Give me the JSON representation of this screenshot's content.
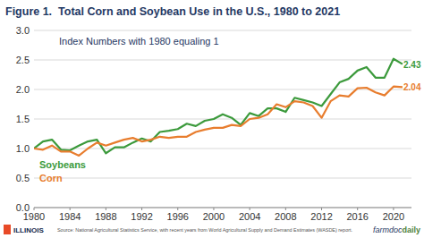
{
  "chart_data": {
    "type": "line",
    "title": "Figure 1.  Total Corn and Soybean Use in the U.S., 1980 to 2021",
    "annotations": [
      "Index Numbers with 1980 equaling 1",
      "Soybeans",
      "Corn",
      "2.43",
      "2.04"
    ],
    "x": [
      1980,
      1981,
      1982,
      1983,
      1984,
      1985,
      1986,
      1987,
      1988,
      1989,
      1990,
      1991,
      1992,
      1993,
      1994,
      1995,
      1996,
      1997,
      1998,
      1999,
      2000,
      2001,
      2002,
      2003,
      2004,
      2005,
      2006,
      2007,
      2008,
      2009,
      2010,
      2011,
      2012,
      2013,
      2014,
      2015,
      2016,
      2017,
      2018,
      2019,
      2020,
      2021
    ],
    "series": [
      {
        "name": "Soybeans",
        "color": "#3c9a3c",
        "values": [
          1.0,
          1.12,
          1.15,
          0.98,
          0.97,
          1.05,
          1.12,
          1.15,
          0.92,
          1.02,
          1.02,
          1.1,
          1.17,
          1.12,
          1.28,
          1.3,
          1.33,
          1.42,
          1.38,
          1.47,
          1.5,
          1.58,
          1.52,
          1.4,
          1.6,
          1.55,
          1.68,
          1.68,
          1.62,
          1.86,
          1.82,
          1.78,
          1.72,
          1.92,
          2.12,
          2.18,
          2.32,
          2.38,
          2.2,
          2.2,
          2.52,
          2.43
        ]
      },
      {
        "name": "Corn",
        "color": "#e87d2e",
        "values": [
          1.0,
          0.98,
          1.05,
          0.95,
          0.95,
          0.88,
          1.0,
          1.1,
          1.05,
          1.1,
          1.15,
          1.18,
          1.12,
          1.15,
          1.2,
          1.18,
          1.2,
          1.2,
          1.28,
          1.32,
          1.35,
          1.35,
          1.4,
          1.38,
          1.5,
          1.52,
          1.58,
          1.75,
          1.7,
          1.8,
          1.78,
          1.72,
          1.52,
          1.8,
          1.9,
          1.88,
          2.02,
          2.03,
          1.95,
          1.9,
          2.05,
          2.04
        ]
      }
    ],
    "xlim": [
      1980,
      2022
    ],
    "xticks": [
      1980,
      1984,
      1988,
      1992,
      1996,
      2000,
      2004,
      2008,
      2012,
      2016,
      2020
    ],
    "ylim": [
      0,
      3
    ],
    "yticks": [
      {
        "value": 0,
        "label": "0.0"
      },
      0.5,
      {
        "value": 1,
        "label": "1.0"
      },
      1.5,
      {
        "value": 2,
        "label": "2.0"
      },
      2.5,
      {
        "value": 3,
        "label": "3.0"
      }
    ],
    "grid": true,
    "footer": {
      "logo": "ILLINOIS",
      "source": "Source: National Agricultural Statistics Service, with recent years from World Agricultural Supply and Demand Estimates (WASDE) report.",
      "brand": [
        "farmdoc",
        "daily"
      ]
    }
  }
}
